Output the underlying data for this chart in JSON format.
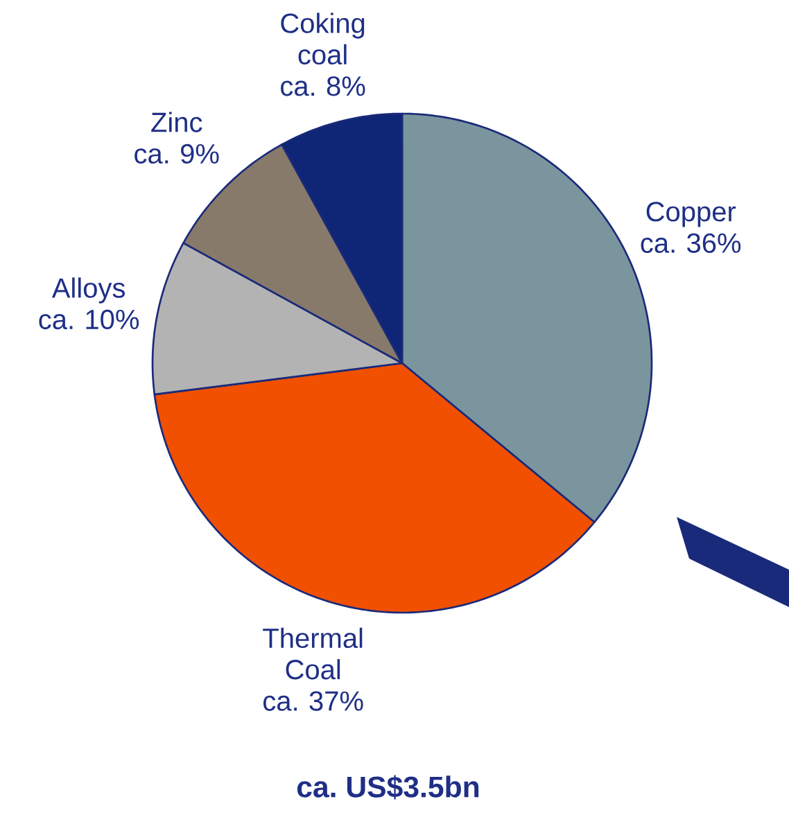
{
  "chart_data": {
    "type": "pie",
    "title": "ca. US$3.5bn",
    "categories": [
      "Copper",
      "Thermal Coal",
      "Alloys",
      "Zinc",
      "Coking coal"
    ],
    "values": [
      36,
      37,
      10,
      9,
      8
    ],
    "value_labels": [
      "ca. 36%",
      "ca. 37%",
      "ca. 10%",
      "ca. 9%",
      "ca. 8%"
    ],
    "colors": [
      "#7a959e",
      "#f05000",
      "#b3b3b3",
      "#877a6a",
      "#0f2575"
    ]
  }
}
